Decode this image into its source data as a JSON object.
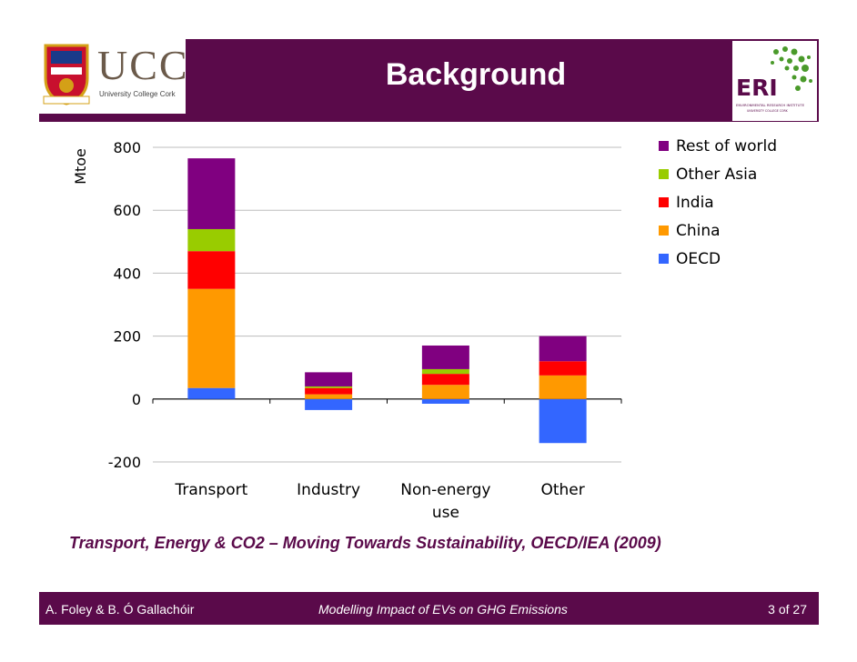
{
  "header": {
    "title": "Background",
    "ucc_logo_text": "UCC",
    "ucc_logo_subtext": "University College Cork",
    "eri_logo_text": "ERI",
    "eri_logo_subtext": "ENVIRONMENTAL RESEARCH INSTITUTE",
    "eri_logo_subtext2": "UNIVERSITY COLLEGE CORK"
  },
  "caption": "Transport, Energy & CO2 – Moving Towards Sustainability, OECD/IEA (2009)",
  "footer": {
    "authors": "A. Foley & B. Ó Gallachóir",
    "subtitle": "Modelling Impact of EVs on GHG Emissions",
    "page": "3 of 27"
  },
  "colors": {
    "header_bg": "#5a0a4a",
    "Rest of world": "#800080",
    "Other Asia": "#99cc00",
    "India": "#ff0000",
    "China": "#ff9900",
    "OECD": "#3366ff"
  },
  "chart_data": {
    "type": "bar",
    "stacked": true,
    "ylabel": "Mtoe",
    "ylim": [
      -200,
      800
    ],
    "yticks": [
      "800",
      "600",
      "400",
      "200",
      "0",
      "-200"
    ],
    "categories": [
      "Transport",
      "Industry",
      "Non-energy use",
      "Other"
    ],
    "category_lines": [
      [
        "Transport"
      ],
      [
        "Industry"
      ],
      [
        "Non-energy",
        "use"
      ],
      [
        "Other"
      ]
    ],
    "legend_position": "right",
    "series": [
      {
        "name": "OECD",
        "values": [
          35,
          -35,
          -15,
          -140
        ]
      },
      {
        "name": "China",
        "values": [
          315,
          15,
          45,
          75
        ]
      },
      {
        "name": "India",
        "values": [
          120,
          20,
          35,
          45
        ]
      },
      {
        "name": "Other Asia",
        "values": [
          70,
          5,
          15,
          0
        ]
      },
      {
        "name": "Rest of world",
        "values": [
          225,
          45,
          75,
          80
        ]
      }
    ],
    "legend": [
      "Rest of world",
      "Other Asia",
      "India",
      "China",
      "OECD"
    ]
  }
}
